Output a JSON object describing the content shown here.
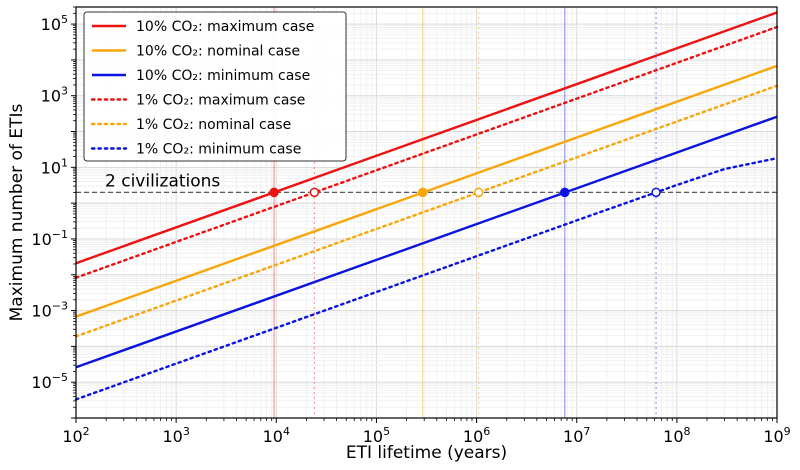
{
  "chart_data": {
    "type": "line",
    "xlabel": "ETI lifetime (years)",
    "ylabel": "Maximum number of ETIs",
    "x_scale": "log",
    "y_scale": "log",
    "xlim": [
      100,
      1000000000
    ],
    "ylim": [
      1e-06,
      300000
    ],
    "grid": true,
    "legend_position": "top-left",
    "x_ticks": [
      {
        "value": 100,
        "base": "10",
        "exp": "2"
      },
      {
        "value": 1000,
        "base": "10",
        "exp": "3"
      },
      {
        "value": 10000,
        "base": "10",
        "exp": "4"
      },
      {
        "value": 100000,
        "base": "10",
        "exp": "5"
      },
      {
        "value": 1000000,
        "base": "10",
        "exp": "6"
      },
      {
        "value": 10000000,
        "base": "10",
        "exp": "7"
      },
      {
        "value": 100000000,
        "base": "10",
        "exp": "8"
      },
      {
        "value": 1000000000,
        "base": "10",
        "exp": "9"
      }
    ],
    "y_ticks": [
      {
        "value": 1e-05,
        "base": "10",
        "exp": "−5"
      },
      {
        "value": 0.001,
        "base": "10",
        "exp": "−3"
      },
      {
        "value": 0.1,
        "base": "10",
        "exp": "−1"
      },
      {
        "value": 10,
        "base": "10",
        "exp": "1"
      },
      {
        "value": 1000,
        "base": "10",
        "exp": "3"
      },
      {
        "value": 100000,
        "base": "10",
        "exp": "5"
      }
    ],
    "reference_line": {
      "y": 2,
      "label": "2 civilizations",
      "color": "#444444"
    },
    "series": [
      {
        "name": "10% CO₂: maximum case",
        "color": "#ee1111",
        "style": "solid",
        "x": [
          100,
          1000000000
        ],
        "y": [
          0.021,
          210000
        ],
        "crossing_x": 9500,
        "marker": "filled"
      },
      {
        "name": "10% CO₂: nominal case",
        "color": "#f8a60a",
        "style": "solid",
        "x": [
          100,
          1000000000
        ],
        "y": [
          0.00068,
          6800
        ],
        "crossing_x": 290000,
        "marker": "filled"
      },
      {
        "name": "10% CO₂: minimum case",
        "color": "#0a14e0",
        "style": "solid",
        "x": [
          100,
          1000000000
        ],
        "y": [
          2.6e-05,
          260
        ],
        "crossing_x": 7600000,
        "marker": "filled"
      },
      {
        "name": "1% CO₂: maximum case",
        "color": "#ee1111",
        "style": "dotted",
        "x": [
          100,
          1000000000
        ],
        "y": [
          0.0083,
          83000
        ],
        "crossing_x": 24000,
        "marker": "open"
      },
      {
        "name": "1% CO₂: nominal case",
        "color": "#f8a60a",
        "style": "dotted",
        "x": [
          100,
          1000000000
        ],
        "y": [
          0.00019,
          1900
        ],
        "crossing_x": 1050000,
        "marker": "open"
      },
      {
        "name": "1% CO₂: minimum case",
        "color": "#0a14e0",
        "style": "dotted",
        "x": [
          100,
          1000000,
          10000000,
          100000000,
          300000000,
          1000000000
        ],
        "y": [
          3.3e-06,
          0.033,
          0.33,
          3.2,
          9,
          18
        ],
        "crossing_x": 62000000,
        "marker": "open"
      }
    ]
  }
}
